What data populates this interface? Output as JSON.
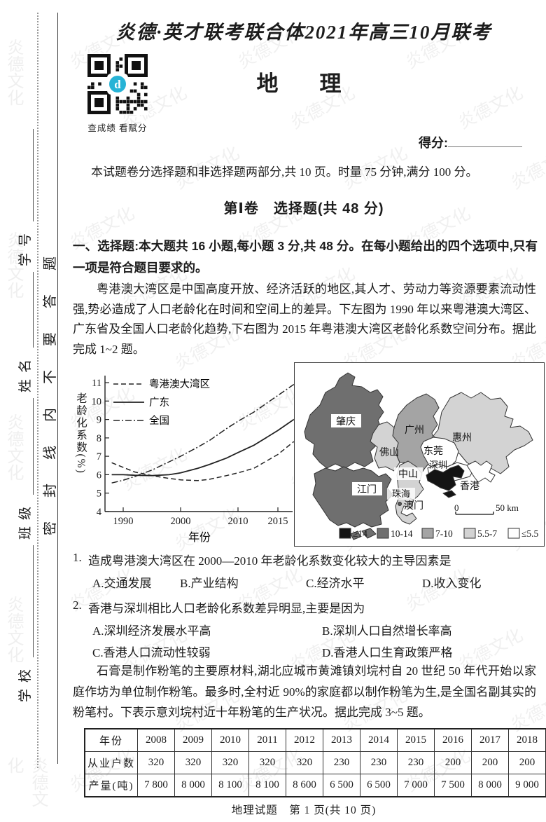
{
  "page": {
    "title": "炎德·英才联考联合体2021年高三10月联考",
    "subject": "地　理",
    "qr_caption": "查成绩 看赋分",
    "score_label": "得分:",
    "intro": "本试题卷分选择题和非选择题两部分,共 10 页。时量 75 分钟,满分 100 分。",
    "part1_title": "第Ⅰ卷　选择题(共 48 分)",
    "footer": "地理试题　第 1 页(共 10 页)",
    "watermark": "炎德文化",
    "accent_blue": "#27b3d6"
  },
  "seal_margin": {
    "fields": [
      "学校",
      "班级",
      "姓名",
      "学号"
    ],
    "seal_text": "密封线内不要答题"
  },
  "section1": {
    "heading": "一、选择题:本大题共 16 小题,每小题 3 分,共 48 分。在每小题给出的四个选项中,只有一项是符合题目要求的。",
    "stimulus1": "粤港澳大湾区是中国高度开放、经济活跃的地区,其人才、劳动力等资源要素流动性强,势必造成了人口老龄化在时间和空间上的差异。下左图为 1990 年以来粤港澳大湾区、广东省及全国人口老龄化趋势,下右图为 2015 年粤港澳大湾区老龄化系数空间分布。据此完成 1~2 题。",
    "q1": {
      "number": "1.",
      "stem": "造成粤港澳大湾区在 2000—2010 年老龄化系数变化较大的主导因素是",
      "options": [
        "A.交通发展",
        "B.产业结构",
        "C.经济水平",
        "D.收入变化"
      ]
    },
    "q2": {
      "number": "2.",
      "stem": "香港与深圳相比人口老龄化系数差异明显,主要是因为",
      "options": [
        "A.深圳经济发展水平高",
        "B.深圳人口自然增长率高",
        "C.香港人口流动性较弱",
        "D.香港人口生育政策严格"
      ]
    },
    "stimulus2": "石膏是制作粉笔的主要原材料,湖北应城市黄滩镇刘垸村自 20 世纪 50 年代开始以家庭作坊为单位制作粉笔。最多时,全村近 90%的家庭都以制作粉笔为生,是全国名副其实的粉笔村。下表示意刘垸村近十年粉笔的生产状况。据此完成 3~5 题。"
  },
  "chart_data": [
    {
      "type": "line",
      "title": "1990年以来粤港澳大湾区、广东省及全国人口老龄化趋势",
      "xlabel": "年份",
      "ylabel": "老龄化系数(%)",
      "ylim": [
        4,
        11
      ],
      "yticks": [
        "4",
        "5",
        "6",
        "7",
        "8",
        "9",
        "10",
        "11"
      ],
      "xticks": [
        "1990",
        "2000",
        "2010",
        "2015"
      ],
      "x": [
        1988,
        1990,
        1992,
        1995,
        1998,
        2000,
        2003,
        2005,
        2008,
        2010,
        2012,
        2015,
        2017
      ],
      "series": [
        {
          "name": "粤港澳大湾区",
          "style": "dashed",
          "values": [
            6.65,
            6.4,
            6.15,
            5.95,
            5.8,
            5.72,
            5.68,
            5.75,
            5.95,
            6.1,
            6.35,
            7.1,
            7.8
          ]
        },
        {
          "name": "广东",
          "style": "solid",
          "values": [
            6.0,
            6.0,
            5.97,
            5.95,
            6.0,
            6.1,
            6.35,
            6.55,
            6.9,
            7.2,
            7.6,
            8.4,
            9.0
          ]
        },
        {
          "name": "全国",
          "style": "dashdot",
          "values": [
            5.55,
            5.7,
            5.9,
            6.25,
            6.7,
            7.0,
            7.5,
            7.85,
            8.5,
            8.9,
            9.4,
            10.3,
            10.9
          ]
        }
      ],
      "legend_position": "upper-left",
      "grid": false
    },
    {
      "type": "map",
      "title": "2015年粤港澳大湾区老龄化系数空间分布",
      "legend": [
        {
          "label": "≥14",
          "color": "#141414"
        },
        {
          "label": "10-14",
          "color": "#6f6f6f"
        },
        {
          "label": "7-10",
          "color": "#a4a4a4"
        },
        {
          "label": "5.5-7",
          "color": "#d3d3d3"
        },
        {
          "label": "≤5.5",
          "color": "#ffffff"
        }
      ],
      "regions": [
        {
          "name": "肇庆",
          "class": "10-14"
        },
        {
          "name": "广州",
          "class": "7-10"
        },
        {
          "name": "惠州",
          "class": "5.5-7"
        },
        {
          "name": "佛山",
          "class": "5.5-7"
        },
        {
          "name": "东莞",
          "class": "≤5.5"
        },
        {
          "name": "深圳",
          "class": "≤5.5"
        },
        {
          "name": "中山",
          "class": "5.5-7"
        },
        {
          "name": "珠海",
          "class": "5.5-7"
        },
        {
          "name": "江门",
          "class": "10-14"
        },
        {
          "name": "香港",
          "class": "≥14"
        },
        {
          "name": "澳门",
          "class": "5.5-7"
        }
      ],
      "scale": {
        "zero": "0",
        "label": "50 km"
      }
    }
  ],
  "table": {
    "row_headers": [
      "年份",
      "从业户数",
      "产量(吨)"
    ],
    "years": [
      "2008",
      "2009",
      "2010",
      "2011",
      "2012",
      "2013",
      "2014",
      "2015",
      "2016",
      "2017",
      "2018"
    ],
    "households": [
      "320",
      "320",
      "320",
      "320",
      "320",
      "230",
      "230",
      "230",
      "200",
      "200",
      "200"
    ],
    "output": [
      "7 800",
      "8 000",
      "8 100",
      "8 100",
      "8 600",
      "6 500",
      "6 500",
      "7 000",
      "7 500",
      "8 000",
      "9 000"
    ]
  }
}
